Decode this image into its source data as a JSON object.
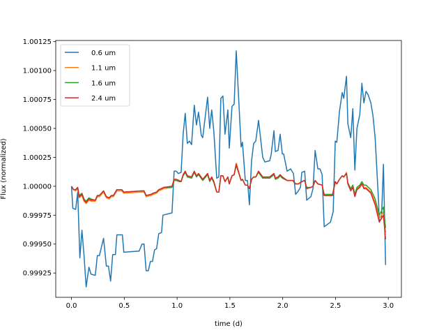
{
  "chart_data": {
    "type": "line",
    "title": "",
    "xlabel": "time (d)",
    "ylabel": "Flux (normalized)",
    "xlim": [
      -0.149,
      3.124
    ],
    "ylim": [
      0.99904,
      1.00126
    ],
    "grid": false,
    "legend_position": "top-left",
    "xticks": [
      0.0,
      0.5,
      1.0,
      1.5,
      2.0,
      2.5,
      3.0
    ],
    "xtick_labels": [
      "0.0",
      "0.5",
      "1.0",
      "1.5",
      "2.0",
      "2.5",
      "3.0"
    ],
    "yticks": [
      0.99925,
      0.9995,
      0.99975,
      1.0,
      1.00025,
      1.0005,
      1.00075,
      1.001,
      1.00125
    ],
    "ytick_labels": [
      "0.99925",
      "0.99950",
      "0.99975",
      "1.00000",
      "1.00025",
      "1.00050",
      "1.00075",
      "1.00100",
      "1.00125"
    ],
    "series": [
      {
        "name": "0.6 um",
        "color": "#1f77b4",
        "x": [
          0,
          0.013,
          0.04,
          0.059,
          0.079,
          0.099,
          0.119,
          0.139,
          0.165,
          0.185,
          0.225,
          0.245,
          0.264,
          0.304,
          0.33,
          0.35,
          0.37,
          0.39,
          0.416,
          0.43,
          0.482,
          0.496,
          0.641,
          0.668,
          0.687,
          0.707,
          0.727,
          0.747,
          0.767,
          0.787,
          0.806,
          0.826,
          0.853,
          0.866,
          0.952,
          0.972,
          0.991,
          1.011,
          1.038,
          1.057,
          1.077,
          1.097,
          1.117,
          1.137,
          1.163,
          1.183,
          1.203,
          1.229,
          1.243,
          1.289,
          1.309,
          1.328,
          1.348,
          1.375,
          1.395,
          1.414,
          1.434,
          1.454,
          1.481,
          1.494,
          1.52,
          1.54,
          1.56,
          1.606,
          1.619,
          1.646,
          1.666,
          1.685,
          1.705,
          1.725,
          1.745,
          1.771,
          1.811,
          1.831,
          1.877,
          1.89,
          1.917,
          1.93,
          1.956,
          1.976,
          1.996,
          2.009,
          2.042,
          2.075,
          2.102,
          2.122,
          2.141,
          2.168,
          2.181,
          2.208,
          2.227,
          2.267,
          2.287,
          2.307,
          2.333,
          2.353,
          2.373,
          2.393,
          2.452,
          2.478,
          2.498,
          2.512,
          2.538,
          2.564,
          2.578,
          2.604,
          2.617,
          2.644,
          2.664,
          2.683,
          2.703,
          2.73,
          2.75,
          2.769,
          2.789,
          2.809,
          2.835,
          2.855,
          2.875,
          2.908,
          2.915,
          2.935,
          2.954,
          2.974
        ],
        "y": [
          1.0,
          0.99981,
          0.9998,
          0.99995,
          0.99938,
          0.99962,
          0.9994,
          0.99913,
          0.9993,
          0.99924,
          0.99923,
          0.9994,
          0.9994,
          0.99955,
          0.99931,
          0.99931,
          0.99918,
          0.99941,
          0.99941,
          0.99958,
          0.99958,
          0.99943,
          0.99944,
          0.9995,
          0.9995,
          0.99927,
          0.99927,
          0.99935,
          0.99935,
          0.99945,
          0.99946,
          0.99959,
          0.9996,
          0.99975,
          0.99977,
          1.00013,
          1.00013,
          1.00011,
          1.00012,
          1.00045,
          1.00063,
          1.00037,
          1.00039,
          1.00036,
          1.0007,
          1.00053,
          1.00064,
          1.00044,
          1.00042,
          1.00077,
          1.0005,
          1.00066,
          1.00047,
          1.00007,
          1.00008,
          1.00076,
          1.00078,
          1.00045,
          1.00066,
          1.00033,
          1.00069,
          1.00071,
          1.00117,
          1.00034,
          1.00038,
          1.00005,
          1.00005,
          0.99984,
          1.00022,
          1.00037,
          1.00039,
          1.00057,
          1.00025,
          1.00021,
          1.00022,
          1.00027,
          1.00048,
          1.0003,
          1.00031,
          1.00045,
          1.00028,
          1.00028,
          1.00013,
          1.00015,
          1.00011,
          0.99993,
          0.99995,
          0.99999,
          1.00012,
          1.00013,
          0.99988,
          0.99991,
          0.99998,
          1.00031,
          1.00015,
          1.00015,
          1.0001,
          0.99965,
          0.99969,
          0.99978,
          1.00039,
          1.00038,
          1.00065,
          1.00081,
          1.00076,
          1.00095,
          1.00054,
          1.00042,
          1.00067,
          1.00014,
          1.0005,
          1.00062,
          1.00089,
          1.00072,
          1.00082,
          1.00079,
          1.00072,
          1.00061,
          1.00042,
          0.99986,
          0.9997,
          0.99972,
          1.00019,
          0.99932
        ]
      },
      {
        "name": "1.1 um",
        "color": "#ff7f0e",
        "x": [
          0,
          0.02,
          0.04,
          0.059,
          0.073,
          0.099,
          0.119,
          0.139,
          0.165,
          0.185,
          0.225,
          0.245,
          0.264,
          0.304,
          0.33,
          0.357,
          0.377,
          0.397,
          0.41,
          0.43,
          0.476,
          0.496,
          0.661,
          0.687,
          0.707,
          0.753,
          0.773,
          0.806,
          0.826,
          0.853,
          0.872,
          0.952,
          0.972,
          0.991,
          1.018,
          1.038,
          1.057,
          1.077,
          1.097,
          1.137,
          1.163,
          1.183,
          1.203,
          1.243,
          1.289,
          1.309,
          1.328,
          1.348,
          1.375,
          1.395,
          1.414,
          1.434,
          1.454,
          1.481,
          1.494,
          1.52,
          1.54,
          1.56,
          1.606,
          1.619,
          1.646,
          1.666,
          1.685,
          1.705,
          1.725,
          1.745,
          1.771,
          1.811,
          1.877,
          1.89,
          1.917,
          1.93,
          1.956,
          1.976,
          1.996,
          2.042,
          2.095,
          2.122,
          2.148,
          2.181,
          2.208,
          2.227,
          2.267,
          2.287,
          2.307,
          2.333,
          2.373,
          2.393,
          2.472,
          2.498,
          2.512,
          2.538,
          2.564,
          2.578,
          2.604,
          2.617,
          2.644,
          2.664,
          2.683,
          2.703,
          2.73,
          2.75,
          2.769,
          2.789,
          2.835,
          2.875,
          2.915,
          2.954,
          2.974
        ],
        "y": [
          1.0,
          0.99997,
          0.99996,
          0.99998,
          0.9999,
          0.99992,
          0.99987,
          0.99985,
          0.99988,
          0.99987,
          0.99987,
          0.99991,
          0.99991,
          0.99995,
          0.9999,
          0.99989,
          0.99991,
          0.99991,
          0.99993,
          0.99996,
          0.99996,
          0.99994,
          0.99995,
          0.99995,
          0.99991,
          0.99992,
          0.99993,
          0.99994,
          0.99996,
          0.99997,
          0.99998,
          0.99999,
          1.00006,
          1.00006,
          1.00005,
          1.00004,
          1.0001,
          1.00013,
          1.00009,
          1.00008,
          1.00013,
          1.00009,
          1.00011,
          1.00006,
          1.00011,
          1.00005,
          1.00008,
          1.00004,
          0.99995,
          0.99995,
          1.00009,
          1.00009,
          1.00004,
          1.00008,
          1.00002,
          1.00009,
          1.0001,
          1.0002,
          1.00005,
          1.00006,
          1.00001,
          1.00001,
          0.99998,
          1.00006,
          1.00008,
          1.00008,
          1.00013,
          1.00008,
          1.00008,
          1.00009,
          1.00011,
          1.00007,
          1.00008,
          1.0001,
          1.00008,
          1.00005,
          1.00005,
          1.00002,
          1.00002,
          1.00004,
          1.00005,
          0.99998,
          0.99999,
          1.0,
          1.00005,
          1.00002,
          1.00001,
          0.99992,
          0.99992,
          1.00004,
          1.00002,
          1.00006,
          1.00009,
          1.00008,
          1.00012,
          1.00002,
          0.99997,
          1.0,
          0.99992,
          0.99998,
          1.0,
          1.00003,
          0.99999,
          0.99999,
          0.99995,
          0.99986,
          0.99972,
          0.99978,
          0.9996
        ]
      },
      {
        "name": "1.6 um",
        "color": "#2ca02c",
        "x": [
          0,
          0.02,
          0.04,
          0.059,
          0.073,
          0.099,
          0.119,
          0.139,
          0.165,
          0.185,
          0.225,
          0.245,
          0.264,
          0.304,
          0.33,
          0.357,
          0.377,
          0.397,
          0.41,
          0.43,
          0.476,
          0.496,
          0.661,
          0.687,
          0.707,
          0.753,
          0.773,
          0.806,
          0.826,
          0.853,
          0.872,
          0.952,
          0.972,
          0.991,
          1.018,
          1.038,
          1.057,
          1.077,
          1.097,
          1.137,
          1.163,
          1.183,
          1.203,
          1.243,
          1.289,
          1.309,
          1.328,
          1.348,
          1.375,
          1.395,
          1.414,
          1.434,
          1.454,
          1.481,
          1.494,
          1.52,
          1.54,
          1.56,
          1.606,
          1.619,
          1.646,
          1.666,
          1.685,
          1.705,
          1.725,
          1.745,
          1.771,
          1.811,
          1.877,
          1.89,
          1.917,
          1.93,
          1.956,
          1.976,
          1.996,
          2.042,
          2.095,
          2.122,
          2.148,
          2.181,
          2.208,
          2.227,
          2.267,
          2.287,
          2.307,
          2.333,
          2.373,
          2.393,
          2.472,
          2.498,
          2.512,
          2.538,
          2.564,
          2.578,
          2.604,
          2.617,
          2.644,
          2.664,
          2.683,
          2.703,
          2.73,
          2.75,
          2.769,
          2.789,
          2.835,
          2.875,
          2.915,
          2.954,
          2.974
        ],
        "y": [
          1.0,
          0.99997,
          0.99997,
          0.99999,
          0.99992,
          0.99994,
          0.99989,
          0.99987,
          0.9999,
          0.99989,
          0.99988,
          0.99992,
          0.99992,
          0.99996,
          0.99991,
          0.9999,
          0.99992,
          0.99992,
          0.99994,
          0.99997,
          0.99997,
          0.99995,
          0.99996,
          0.99996,
          0.99992,
          0.99993,
          0.99994,
          0.99995,
          0.99997,
          0.99998,
          0.99999,
          0.99999,
          1.00005,
          1.00005,
          1.00004,
          1.00004,
          1.00009,
          1.00012,
          1.00008,
          1.00007,
          1.00012,
          1.00008,
          1.0001,
          1.00005,
          1.0001,
          1.00004,
          1.00007,
          1.00003,
          0.99995,
          0.99995,
          1.00009,
          1.00009,
          1.00004,
          1.00008,
          1.00002,
          1.00009,
          1.0001,
          1.00018,
          1.00005,
          1.00006,
          1.00001,
          1.00001,
          0.99998,
          1.00006,
          1.00008,
          1.00008,
          1.00012,
          1.00007,
          1.00007,
          1.00008,
          1.0001,
          1.00006,
          1.00007,
          1.00009,
          1.00007,
          1.00005,
          1.00005,
          1.00002,
          1.00002,
          1.00004,
          1.00005,
          0.99999,
          0.99999,
          1.0,
          1.00005,
          1.00002,
          1.00001,
          0.99993,
          0.99993,
          1.00004,
          1.00002,
          1.00006,
          1.00009,
          1.00008,
          1.00011,
          1.00003,
          0.99998,
          1.00001,
          0.99993,
          0.99999,
          1.00001,
          1.00004,
          1.00001,
          1.00001,
          0.99997,
          0.99989,
          0.99975,
          0.99982,
          0.99964
        ]
      },
      {
        "name": "2.4 um",
        "color": "#d62728",
        "x": [
          0,
          0.02,
          0.04,
          0.059,
          0.073,
          0.099,
          0.119,
          0.139,
          0.165,
          0.185,
          0.225,
          0.245,
          0.264,
          0.304,
          0.33,
          0.357,
          0.377,
          0.397,
          0.41,
          0.43,
          0.476,
          0.496,
          0.661,
          0.687,
          0.707,
          0.753,
          0.773,
          0.806,
          0.826,
          0.853,
          0.872,
          0.952,
          0.972,
          0.991,
          1.018,
          1.038,
          1.057,
          1.077,
          1.097,
          1.137,
          1.163,
          1.183,
          1.203,
          1.243,
          1.289,
          1.309,
          1.328,
          1.348,
          1.375,
          1.395,
          1.414,
          1.434,
          1.454,
          1.481,
          1.494,
          1.52,
          1.54,
          1.56,
          1.606,
          1.619,
          1.646,
          1.666,
          1.685,
          1.705,
          1.725,
          1.745,
          1.771,
          1.811,
          1.877,
          1.89,
          1.917,
          1.93,
          1.956,
          1.976,
          1.996,
          2.042,
          2.095,
          2.122,
          2.148,
          2.181,
          2.208,
          2.227,
          2.267,
          2.287,
          2.307,
          2.333,
          2.373,
          2.393,
          2.472,
          2.498,
          2.512,
          2.538,
          2.564,
          2.578,
          2.604,
          2.617,
          2.644,
          2.664,
          2.683,
          2.703,
          2.73,
          2.75,
          2.769,
          2.789,
          2.835,
          2.875,
          2.915,
          2.954,
          2.974
        ],
        "y": [
          1.0,
          0.99997,
          0.99997,
          0.99999,
          0.99991,
          0.99993,
          0.99988,
          0.99986,
          0.99989,
          0.99988,
          0.99988,
          0.99992,
          0.99992,
          0.99996,
          0.99991,
          0.9999,
          0.99992,
          0.99992,
          0.99994,
          0.99997,
          0.99997,
          0.99995,
          0.99996,
          0.99996,
          0.99992,
          0.99993,
          0.99994,
          0.99995,
          0.99997,
          0.99998,
          0.99999,
          1.0,
          1.00006,
          1.00006,
          1.00005,
          1.00004,
          1.0001,
          1.00013,
          1.00009,
          1.00008,
          1.00013,
          1.00009,
          1.00011,
          1.00006,
          1.00011,
          1.00005,
          1.00008,
          1.00004,
          0.99995,
          0.99995,
          1.00009,
          1.00009,
          1.00004,
          1.00008,
          1.00002,
          1.00009,
          1.0001,
          1.00019,
          1.00005,
          1.00006,
          1.00001,
          1.00001,
          0.99998,
          1.00006,
          1.00008,
          1.00008,
          1.00013,
          1.00008,
          1.00008,
          1.00009,
          1.00011,
          1.00007,
          1.00008,
          1.0001,
          1.00008,
          1.00005,
          1.00005,
          1.00002,
          1.00002,
          1.00004,
          1.00005,
          0.99998,
          0.99999,
          1.0,
          1.00005,
          1.00002,
          1.00001,
          0.99992,
          0.99992,
          1.00004,
          1.00002,
          1.00006,
          1.00009,
          1.00008,
          1.00011,
          1.00002,
          0.99996,
          0.99999,
          0.99991,
          0.99997,
          0.99999,
          1.00002,
          0.99998,
          0.99998,
          0.99994,
          0.99984,
          0.99969,
          0.99975,
          0.99954
        ]
      }
    ]
  }
}
